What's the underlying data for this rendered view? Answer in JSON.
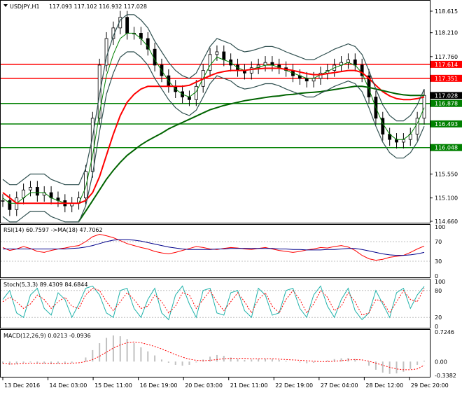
{
  "header": {
    "symbol_tf": "USDJPY,H1",
    "ohlc": "117.093 117.102 116.932 117.028",
    "triangle_icon": "dropdown-triangle-icon"
  },
  "colors": {
    "candle": "#000000",
    "ma_green": "#008000",
    "ma_dark_green": "#006400",
    "ma_red": "#ff0000",
    "bands": "#2f4f4f",
    "hline_red": "#ff0000",
    "hline_green": "#008000",
    "rsi_line": "#ff0000",
    "rsi_ma": "#00008b",
    "stoch_main": "#20b2aa",
    "stoch_signal": "#ff0000",
    "macd_hist": "#c0c0c0",
    "macd_signal": "#ff0000",
    "price_tag_dark": "#000000"
  },
  "price_axis": {
    "ticks": [
      "118.615",
      "118.210",
      "117.760",
      "117.351",
      "117.028",
      "116.493",
      "116.048",
      "115.550",
      "115.100",
      "114.660"
    ],
    "current_price": "117.028"
  },
  "levels": [
    {
      "value": "117.614",
      "color": "red"
    },
    {
      "value": "117.351",
      "color": "red"
    },
    {
      "value": "116.878",
      "color": "green"
    },
    {
      "value": "116.493",
      "color": "green"
    },
    {
      "value": "116.048",
      "color": "green"
    }
  ],
  "rsi": {
    "title": "RSI(14) 60.7597  ->MA(18) 47.7062",
    "ticks": [
      "100",
      "70",
      "30",
      "0"
    ]
  },
  "stoch": {
    "title": "Stoch(5,3,3) 89.4309 84.6844",
    "ticks": [
      "100",
      "80",
      "20",
      "0"
    ]
  },
  "macd": {
    "title": "MACD(12,26,9) 0.0213 -0.0936",
    "ticks": [
      "0.7246",
      "0.00",
      "-0.3382"
    ]
  },
  "time_axis": {
    "labels": [
      "13 Dec 2016",
      "14 Dec 03:00",
      "15 Dec 11:00",
      "16 Dec 19:00",
      "20 Dec 03:00",
      "21 Dec 11:00",
      "22 Dec 19:00",
      "27 Dec 04:00",
      "28 Dec 12:00",
      "29 Dec 20:00"
    ]
  },
  "chart_data": [
    {
      "type": "line",
      "title": "USDJPY,H1",
      "ylim": [
        114.66,
        118.72
      ],
      "series": [
        {
          "name": "USDJPY",
          "values": [
            115.05,
            114.88,
            115.1,
            115.25,
            115.3,
            115.15,
            115.2,
            115.1,
            115.05,
            114.95,
            115.0,
            115.1,
            115.6,
            116.6,
            117.6,
            118.1,
            118.3,
            118.5,
            118.2,
            118.2,
            118.1,
            117.9,
            117.6,
            117.4,
            117.2,
            117.1,
            117.0,
            116.95,
            117.2,
            117.5,
            117.8,
            117.85,
            117.7,
            117.6,
            117.5,
            117.45,
            117.55,
            117.6,
            117.65,
            117.6,
            117.55,
            117.5,
            117.4,
            117.35,
            117.3,
            117.35,
            117.45,
            117.5,
            117.6,
            117.65,
            117.7,
            117.6,
            117.4,
            117.0,
            116.6,
            116.3,
            116.2,
            116.15,
            116.2,
            116.3,
            116.6,
            117.03
          ]
        },
        {
          "name": "MA short",
          "values": [
            115.1,
            115.0,
            115.0,
            115.1,
            115.2,
            115.2,
            115.2,
            115.1,
            115.05,
            115.0,
            115.0,
            115.0,
            115.3,
            115.9,
            116.7,
            117.4,
            117.8,
            118.1,
            118.2,
            118.2,
            118.1,
            117.95,
            117.7,
            117.5,
            117.3,
            117.15,
            117.05,
            117.0,
            117.1,
            117.35,
            117.6,
            117.75,
            117.7,
            117.65,
            117.55,
            117.5,
            117.52,
            117.56,
            117.6,
            117.6,
            117.56,
            117.5,
            117.45,
            117.4,
            117.35,
            117.35,
            117.42,
            117.48,
            117.55,
            117.6,
            117.65,
            117.6,
            117.45,
            117.15,
            116.8,
            116.5,
            116.3,
            116.2,
            116.2,
            116.3,
            116.5,
            116.8
          ]
        },
        {
          "name": "MA medium",
          "values": [
            115.2,
            115.1,
            115.0,
            115.0,
            115.0,
            115.0,
            115.0,
            115.0,
            115.0,
            115.0,
            115.0,
            115.0,
            115.05,
            115.2,
            115.5,
            115.9,
            116.3,
            116.65,
            116.9,
            117.05,
            117.15,
            117.2,
            117.2,
            117.2,
            117.2,
            117.2,
            117.2,
            117.22,
            117.28,
            117.34,
            117.4,
            117.45,
            117.48,
            117.5,
            117.5,
            117.5,
            117.52,
            117.53,
            117.54,
            117.54,
            117.54,
            117.52,
            117.5,
            117.47,
            117.44,
            117.42,
            117.42,
            117.44,
            117.46,
            117.48,
            117.5,
            117.5,
            117.46,
            117.35,
            117.22,
            117.1,
            117.02,
            116.97,
            116.95,
            116.95,
            116.97,
            117.0
          ]
        },
        {
          "name": "MA long",
          "values": [
            null,
            null,
            null,
            null,
            null,
            null,
            null,
            null,
            null,
            null,
            null,
            114.66,
            114.85,
            115.05,
            115.25,
            115.45,
            115.62,
            115.77,
            115.9,
            116.0,
            116.1,
            116.18,
            116.25,
            116.32,
            116.4,
            116.46,
            116.52,
            116.58,
            116.64,
            116.7,
            116.76,
            116.8,
            116.84,
            116.87,
            116.9,
            116.93,
            116.95,
            116.97,
            116.99,
            117.01,
            117.02,
            117.04,
            117.05,
            117.07,
            117.08,
            117.09,
            117.1,
            117.12,
            117.14,
            117.16,
            117.18,
            117.2,
            117.2,
            117.18,
            117.15,
            117.12,
            117.09,
            117.06,
            117.04,
            117.03,
            117.03,
            117.03
          ]
        }
      ]
    },
    {
      "type": "line",
      "title": "RSI(14) 60.7597  ->MA(18) 47.7062",
      "ylim": [
        0,
        100
      ],
      "series": [
        {
          "name": "RSI",
          "values": [
            58,
            52,
            55,
            60,
            56,
            50,
            48,
            52,
            55,
            57,
            60,
            62,
            70,
            80,
            85,
            82,
            78,
            72,
            66,
            62,
            58,
            55,
            50,
            47,
            45,
            48,
            52,
            56,
            60,
            58,
            55,
            54,
            56,
            58,
            57,
            55,
            54,
            56,
            58,
            55,
            52,
            50,
            48,
            50,
            53,
            55,
            58,
            57,
            60,
            62,
            59,
            52,
            42,
            35,
            32,
            34,
            38,
            40,
            42,
            48,
            55,
            61
          ]
        },
        {
          "name": "MA",
          "values": [
            55,
            55,
            55,
            55,
            55,
            55,
            55,
            55,
            55,
            55,
            56,
            57,
            59,
            62,
            66,
            70,
            73,
            74,
            74,
            73,
            71,
            68,
            65,
            62,
            59,
            57,
            55,
            54,
            54,
            54,
            54,
            55,
            55,
            56,
            56,
            56,
            56,
            56,
            56,
            56,
            55,
            55,
            54,
            54,
            53,
            53,
            53,
            54,
            54,
            55,
            56,
            56,
            54,
            51,
            48,
            45,
            43,
            42,
            42,
            43,
            45,
            48
          ]
        }
      ]
    },
    {
      "type": "line",
      "title": "Stoch(5,3,3) 89.4309 84.6844",
      "ylim": [
        0,
        100
      ],
      "series": [
        {
          "name": "Main",
          "values": [
            60,
            80,
            30,
            20,
            70,
            85,
            40,
            25,
            75,
            60,
            20,
            50,
            85,
            90,
            70,
            30,
            20,
            80,
            85,
            40,
            20,
            60,
            85,
            30,
            15,
            70,
            90,
            50,
            20,
            80,
            85,
            30,
            25,
            75,
            80,
            35,
            20,
            85,
            70,
            25,
            30,
            80,
            85,
            40,
            20,
            70,
            90,
            45,
            20,
            60,
            85,
            35,
            15,
            30,
            80,
            50,
            20,
            75,
            85,
            40,
            70,
            89
          ]
        },
        {
          "name": "Signal",
          "values": [
            55,
            65,
            55,
            40,
            50,
            70,
            60,
            40,
            55,
            65,
            45,
            40,
            70,
            85,
            80,
            55,
            35,
            55,
            75,
            60,
            40,
            45,
            70,
            55,
            30,
            45,
            75,
            70,
            40,
            60,
            80,
            55,
            35,
            55,
            75,
            55,
            30,
            60,
            75,
            45,
            30,
            60,
            80,
            60,
            30,
            50,
            80,
            65,
            35,
            45,
            75,
            55,
            25,
            30,
            60,
            55,
            30,
            55,
            80,
            60,
            55,
            85
          ]
        }
      ]
    },
    {
      "type": "bar",
      "title": "MACD(12,26,9) 0.0213 -0.0936",
      "ylim": [
        -0.3382,
        0.7246
      ],
      "series": [
        {
          "name": "MACD",
          "values": [
            -0.05,
            -0.08,
            -0.06,
            -0.03,
            -0.02,
            -0.04,
            -0.05,
            -0.06,
            -0.05,
            -0.04,
            -0.03,
            0.0,
            0.1,
            0.28,
            0.45,
            0.58,
            0.64,
            0.62,
            0.55,
            0.45,
            0.35,
            0.25,
            0.15,
            0.05,
            -0.03,
            -0.08,
            -0.1,
            -0.08,
            -0.02,
            0.05,
            0.12,
            0.16,
            0.14,
            0.1,
            0.06,
            0.04,
            0.05,
            0.06,
            0.07,
            0.06,
            0.04,
            0.02,
            0.0,
            -0.02,
            -0.04,
            -0.03,
            0.0,
            0.03,
            0.06,
            0.08,
            0.09,
            0.06,
            0.0,
            -0.1,
            -0.2,
            -0.27,
            -0.3,
            -0.29,
            -0.25,
            -0.18,
            -0.08,
            0.02
          ]
        },
        {
          "name": "Signal",
          "values": [
            -0.05,
            -0.06,
            -0.06,
            -0.05,
            -0.04,
            -0.04,
            -0.04,
            -0.05,
            -0.05,
            -0.05,
            -0.04,
            -0.03,
            0.0,
            0.05,
            0.13,
            0.23,
            0.33,
            0.41,
            0.46,
            0.48,
            0.46,
            0.42,
            0.37,
            0.31,
            0.24,
            0.17,
            0.11,
            0.06,
            0.03,
            0.02,
            0.03,
            0.05,
            0.07,
            0.08,
            0.08,
            0.08,
            0.07,
            0.07,
            0.07,
            0.07,
            0.06,
            0.05,
            0.04,
            0.03,
            0.02,
            0.01,
            0.0,
            0.0,
            0.01,
            0.02,
            0.04,
            0.05,
            0.04,
            0.01,
            -0.04,
            -0.09,
            -0.14,
            -0.18,
            -0.2,
            -0.2,
            -0.18,
            -0.09
          ]
        }
      ]
    }
  ]
}
